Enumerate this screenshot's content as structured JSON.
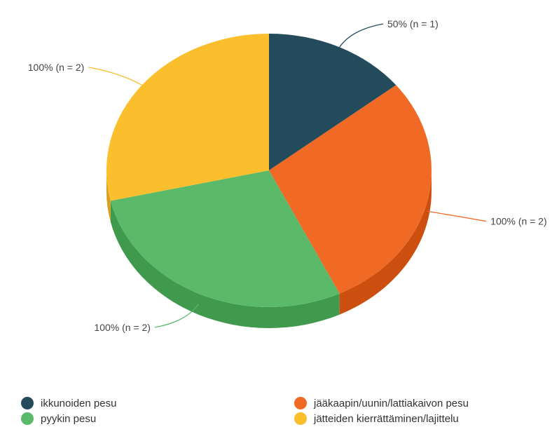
{
  "chart_data": {
    "type": "pie",
    "title": "",
    "three_d": true,
    "legend_placement": "bottom",
    "slices": [
      {
        "name": "ikkunoiden pesu",
        "value": 1,
        "label": "50% (n = 1)",
        "color": "#234b5c",
        "side_color": "#17333f"
      },
      {
        "name": "jääkaapin/uunin/lattiakaivon pesu",
        "value": 2,
        "label": "100% (n = 2)",
        "color": "#f06a25",
        "side_color": "#cc4f10"
      },
      {
        "name": "pyykin pesu",
        "value": 2,
        "label": "100% (n = 2)",
        "color": "#5aba6a",
        "side_color": "#3f9a4d"
      },
      {
        "name": "jätteiden kierrättäminen/lajittelu",
        "value": 2,
        "label": "100% (n = 2)",
        "color": "#fbbf2e",
        "side_color": "#d89f1a"
      }
    ]
  }
}
